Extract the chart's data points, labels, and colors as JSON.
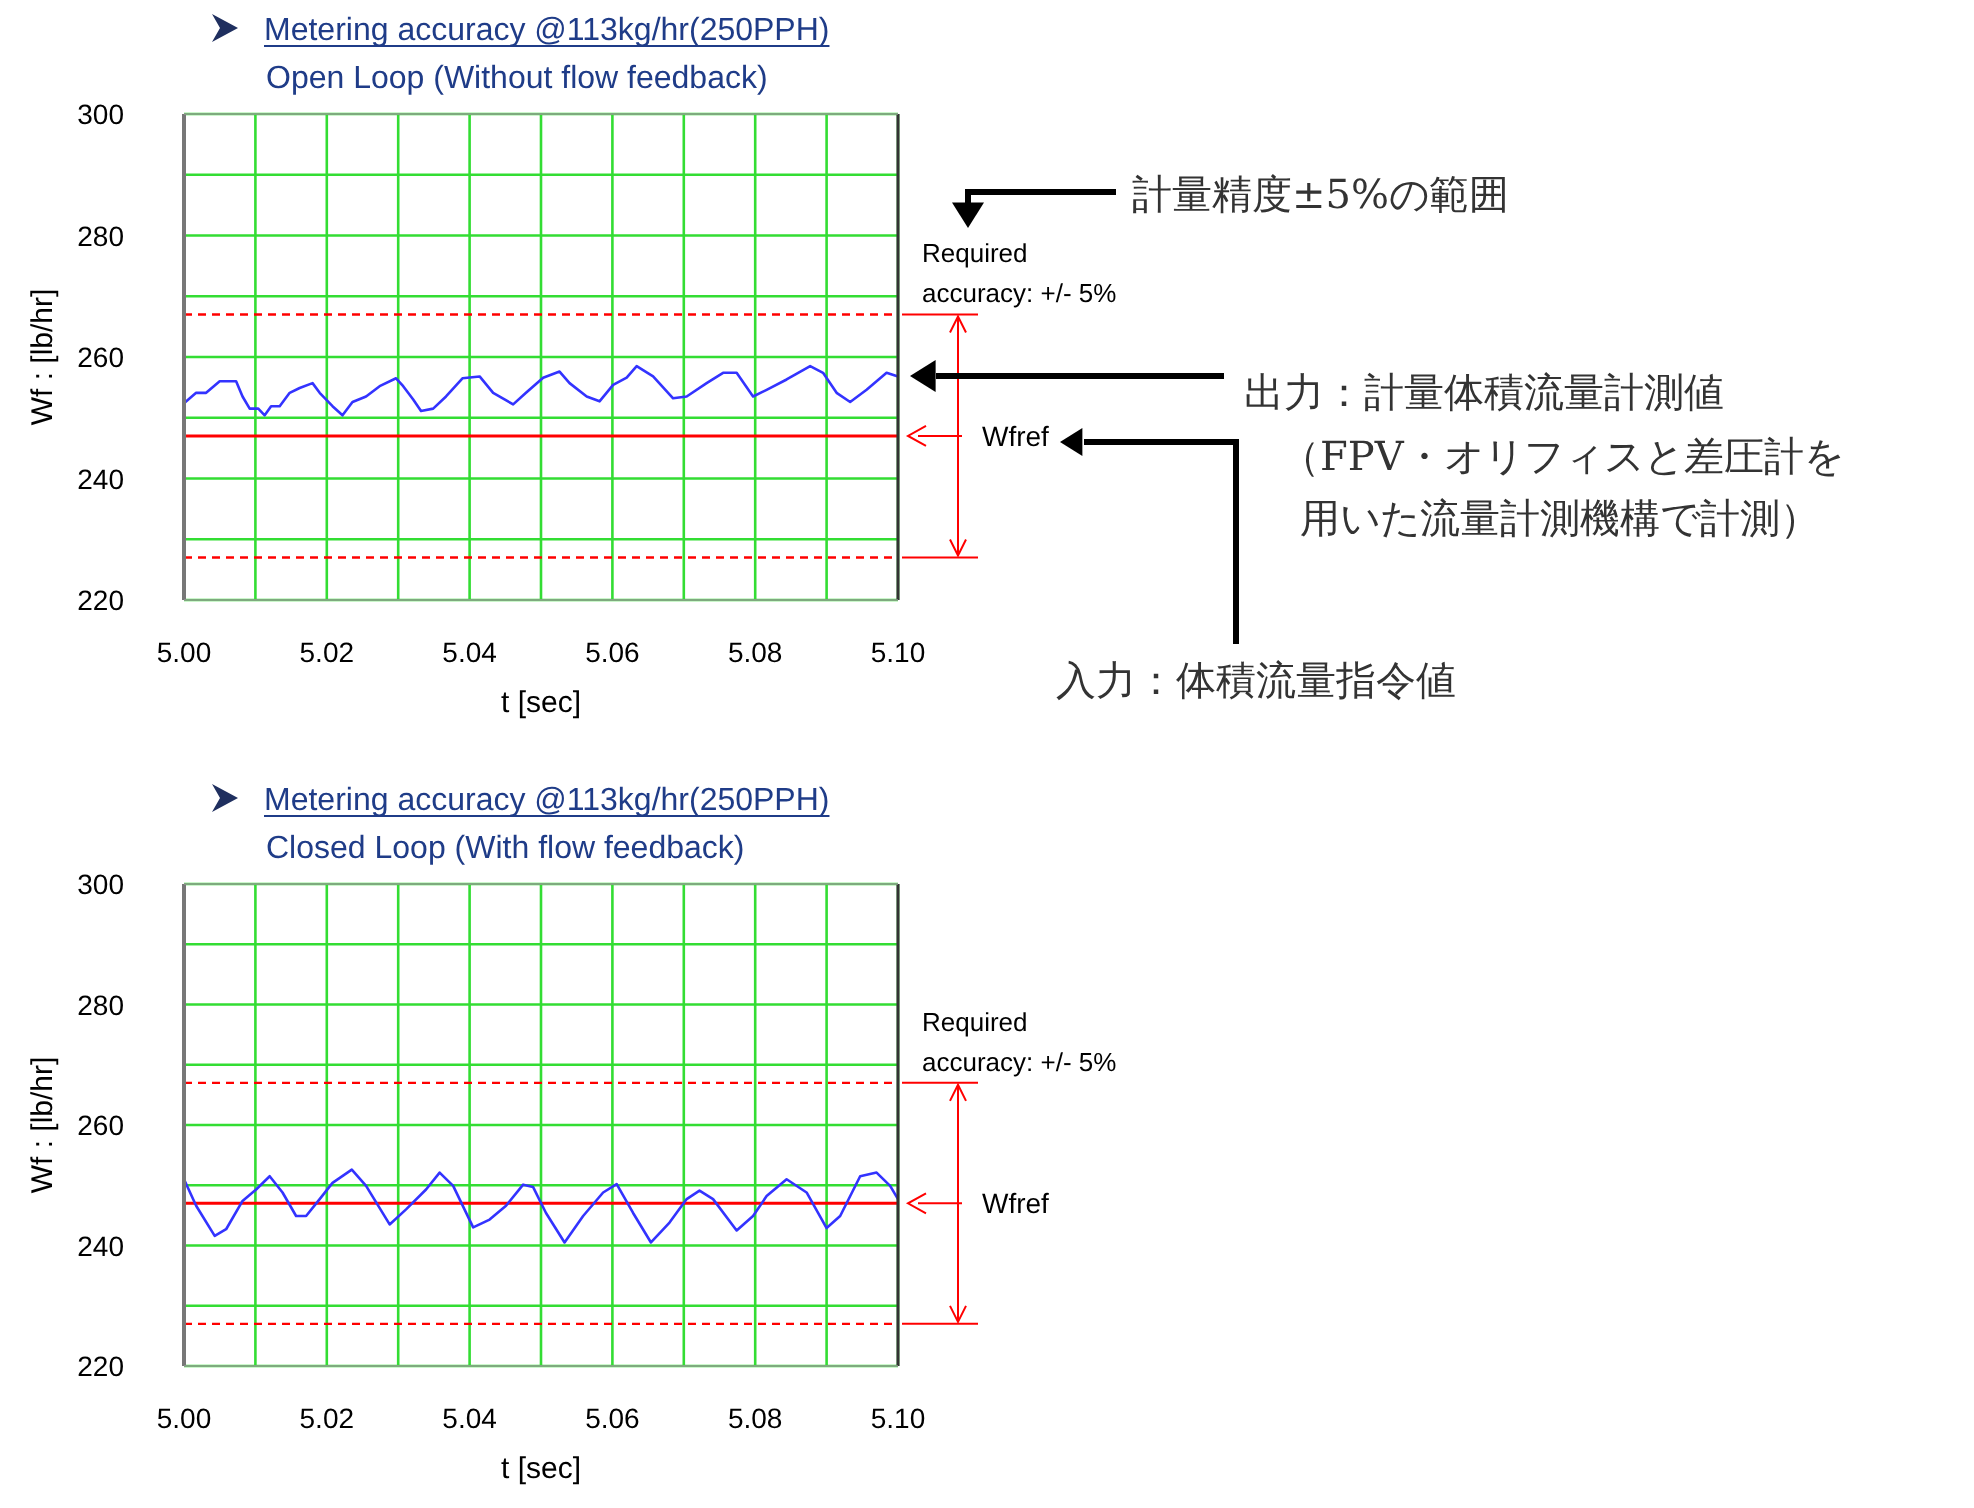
{
  "chart_data": [
    {
      "type": "line",
      "title": "Metering accuracy @113kg/hr(250PPH)",
      "subtitle": "Open Loop (Without flow feedback)",
      "xlabel": "t [sec]",
      "ylabel": "Wf : [lb/hr]",
      "xlim": [
        5.0,
        5.1
      ],
      "ylim": [
        220,
        300
      ],
      "xticks": [
        {
          "value": 5.0,
          "label": "5.00"
        },
        {
          "value": 5.01,
          "label": null
        },
        {
          "value": 5.02,
          "label": "5.02"
        },
        {
          "value": 5.03,
          "label": null
        },
        {
          "value": 5.04,
          "label": "5.04"
        },
        {
          "value": 5.05,
          "label": null
        },
        {
          "value": 5.06,
          "label": "5.06"
        },
        {
          "value": 5.07,
          "label": null
        },
        {
          "value": 5.08,
          "label": "5.08"
        },
        {
          "value": 5.09,
          "label": null
        },
        {
          "value": 5.1,
          "label": "5.10"
        }
      ],
      "yticks": [
        220,
        {
          "value": 230,
          "label": null
        },
        240,
        {
          "value": 250,
          "label": null
        },
        260,
        {
          "value": 270,
          "label": null
        },
        280,
        {
          "value": 290,
          "label": null
        },
        300
      ],
      "grid": true,
      "series": [
        {
          "color": "#3333ff",
          "x": [
            5.0,
            5.0017,
            5.0031,
            5.005,
            5.0073,
            5.0082,
            5.0092,
            5.0104,
            5.0113,
            5.0122,
            5.0134,
            5.0148,
            5.0162,
            5.018,
            5.019,
            5.0208,
            5.0222,
            5.0236,
            5.0255,
            5.0274,
            5.0297,
            5.0307,
            5.0321,
            5.0332,
            5.0349,
            5.0367,
            5.039,
            5.0414,
            5.0433,
            5.0461,
            5.0479,
            5.0503,
            5.0526,
            5.054,
            5.0564,
            5.0582,
            5.0601,
            5.062,
            5.0634,
            5.0657,
            5.0685,
            5.0704,
            5.0732,
            5.0755,
            5.0774,
            5.0797,
            5.0816,
            5.0844,
            5.0877,
            5.0895,
            5.0914,
            5.0933,
            5.0956,
            5.0984,
            5.1
          ],
          "values": [
            252.4,
            254.1,
            254.1,
            256.0,
            256.0,
            253.5,
            251.5,
            251.5,
            250.4,
            251.9,
            251.9,
            254.1,
            254.9,
            255.7,
            254.1,
            251.9,
            250.4,
            252.6,
            253.5,
            255.2,
            256.5,
            255.2,
            253.0,
            251.1,
            251.5,
            253.5,
            256.5,
            256.8,
            254.1,
            252.2,
            254.1,
            256.6,
            257.6,
            255.7,
            253.5,
            252.7,
            255.4,
            256.6,
            258.5,
            256.8,
            253.2,
            253.5,
            255.7,
            257.4,
            257.4,
            253.5,
            254.6,
            256.3,
            258.5,
            257.4,
            254.1,
            252.6,
            254.6,
            257.4,
            256.8
          ]
        }
      ],
      "ref_lines": [
        {
          "axis": "y",
          "value": 267,
          "color": "#ff0000",
          "line_style": "dashed"
        },
        {
          "axis": "y",
          "value": 227,
          "color": "#ff0000",
          "line_style": "dashed"
        },
        {
          "axis": "y",
          "value": 247,
          "label": "Wfref",
          "color": "#ff0000",
          "line_style": "solid"
        }
      ],
      "annotations": [
        "Required accuracy: +/- 5%",
        "計量精度±5%の範囲",
        "出力：計量体積流量計測値",
        "（FPV・オリフィスと差圧計を用いた流量計測機構で計測）",
        "入力：体積流量指令値"
      ]
    },
    {
      "type": "line",
      "title": "Metering accuracy @113kg/hr(250PPH)",
      "subtitle": "Closed Loop (With flow feedback)",
      "xlabel": "t [sec]",
      "ylabel": "Wf : [lb/hr]",
      "xlim": [
        5.0,
        5.1
      ],
      "ylim": [
        220,
        300
      ],
      "xticks": [
        {
          "value": 5.0,
          "label": "5.00"
        },
        {
          "value": 5.01,
          "label": null
        },
        {
          "value": 5.02,
          "label": "5.02"
        },
        {
          "value": 5.03,
          "label": null
        },
        {
          "value": 5.04,
          "label": "5.04"
        },
        {
          "value": 5.05,
          "label": null
        },
        {
          "value": 5.06,
          "label": "5.06"
        },
        {
          "value": 5.07,
          "label": null
        },
        {
          "value": 5.08,
          "label": "5.08"
        },
        {
          "value": 5.09,
          "label": null
        },
        {
          "value": 5.1,
          "label": "5.10"
        }
      ],
      "yticks": [
        220,
        {
          "value": 230,
          "label": null
        },
        240,
        {
          "value": 250,
          "label": null
        },
        260,
        {
          "value": 270,
          "label": null
        },
        280,
        {
          "value": 290,
          "label": null
        },
        300
      ],
      "grid": true,
      "series": [
        {
          "color": "#3333ff",
          "x": [
            5.0,
            5.0017,
            5.0043,
            5.0059,
            5.0082,
            5.0101,
            5.012,
            5.0138,
            5.0157,
            5.0171,
            5.019,
            5.0208,
            5.0235,
            5.0255,
            5.0288,
            5.0311,
            5.0339,
            5.0358,
            5.0377,
            5.0405,
            5.0428,
            5.0451,
            5.0475,
            5.0489,
            5.0507,
            5.0533,
            5.0559,
            5.0587,
            5.0606,
            5.0629,
            5.0654,
            5.068,
            5.0704,
            5.0722,
            5.0741,
            5.0774,
            5.0797,
            5.0816,
            5.0844,
            5.0872,
            5.09,
            5.0919,
            5.0947,
            5.097,
            5.0989,
            5.1
          ],
          "values": [
            251.0,
            246.6,
            241.6,
            242.7,
            247.4,
            249.3,
            251.5,
            248.8,
            244.9,
            244.9,
            247.7,
            250.4,
            252.6,
            249.9,
            243.5,
            246.0,
            249.3,
            252.1,
            249.9,
            243.0,
            244.3,
            246.6,
            250.1,
            249.7,
            245.4,
            240.5,
            244.9,
            248.8,
            250.2,
            245.4,
            240.5,
            243.8,
            247.7,
            249.1,
            247.7,
            242.5,
            244.9,
            248.2,
            251.0,
            248.8,
            242.9,
            244.9,
            251.5,
            252.1,
            249.9,
            247.7
          ]
        }
      ],
      "ref_lines": [
        {
          "axis": "y",
          "value": 267,
          "color": "#ff0000",
          "line_style": "dashed"
        },
        {
          "axis": "y",
          "value": 227,
          "color": "#ff0000",
          "line_style": "dashed"
        },
        {
          "axis": "y",
          "value": 247,
          "label": "Wfref",
          "color": "#ff0000",
          "line_style": "solid"
        }
      ],
      "annotations": [
        "Required accuracy: +/- 5%"
      ]
    }
  ]
}
